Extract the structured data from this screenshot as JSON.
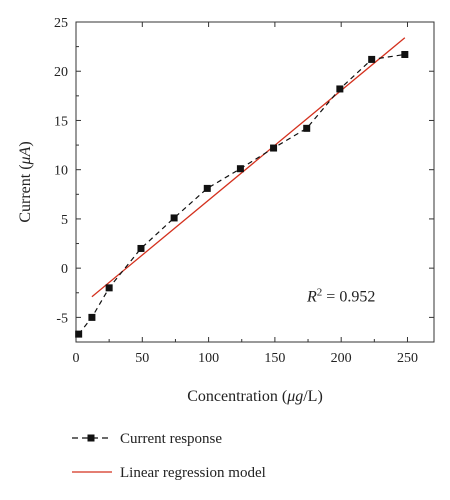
{
  "chart_data": {
    "type": "scatter",
    "xlabel_prefix": "Concentration (",
    "xlabel_unit_italic": "μg",
    "xlabel_suffix": "/L)",
    "ylabel_prefix": "Current (",
    "ylabel_unit_italic": "μA",
    "ylabel_suffix": ")",
    "xlim": [
      0,
      270
    ],
    "ylim": [
      -7.5,
      25
    ],
    "xticks": [
      0,
      50,
      100,
      150,
      200,
      250
    ],
    "yticks": [
      -5,
      0,
      5,
      10,
      15,
      20,
      25
    ],
    "annotation": {
      "r_symbol": "R",
      "superscript": "2",
      "text": " = 0.952",
      "x": 200,
      "y": -3.4
    },
    "series": [
      {
        "name": "Current response",
        "style": "dashed-line-with-square-markers",
        "color": "#111111",
        "x": [
          2,
          12,
          25,
          49,
          74,
          99,
          124,
          149,
          174,
          199,
          223,
          248
        ],
        "y": [
          -6.7,
          -5.0,
          -2.0,
          2.0,
          5.1,
          8.1,
          10.1,
          12.2,
          14.2,
          18.2,
          21.2,
          21.7
        ]
      },
      {
        "name": "Linear regression model",
        "style": "solid-line",
        "color": "#d4311e",
        "x": [
          12,
          248
        ],
        "y": [
          -2.9,
          23.4
        ]
      }
    ],
    "grid": false,
    "legend_position": "bottom"
  }
}
